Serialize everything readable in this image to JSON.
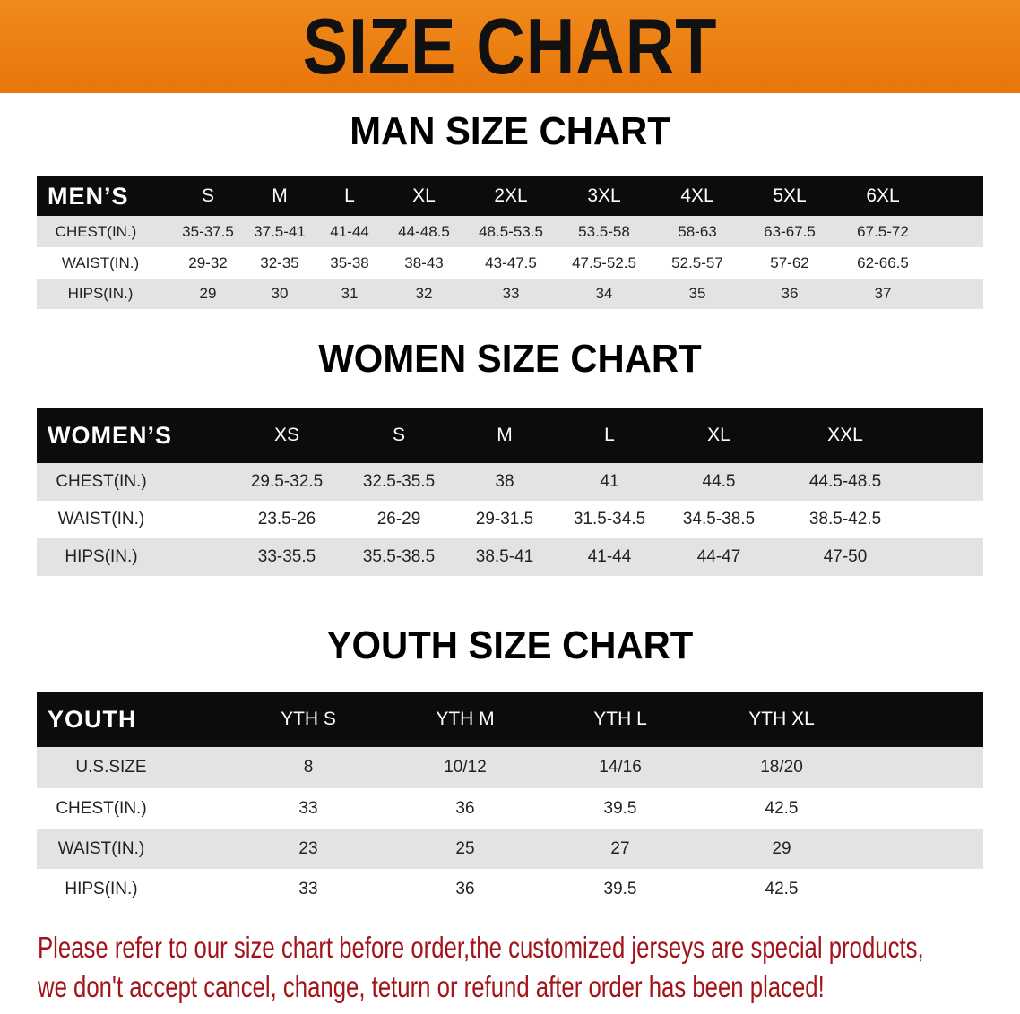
{
  "banner_title": "SIZE CHART",
  "men": {
    "title": "MAN SIZE CHART",
    "header": "MEN’S",
    "sizes": [
      "S",
      "M",
      "L",
      "XL",
      "2XL",
      "3XL",
      "4XL",
      "5XL",
      "6XL"
    ],
    "rows": [
      {
        "label": "CHEST(IN.)",
        "values": [
          "35-37.5",
          "37.5-41",
          "41-44",
          "44-48.5",
          "48.5-53.5",
          "53.5-58",
          "58-63",
          "63-67.5",
          "67.5-72"
        ]
      },
      {
        "label": "WAIST(IN.)",
        "values": [
          "29-32",
          "32-35",
          "35-38",
          "38-43",
          "43-47.5",
          "47.5-52.5",
          "52.5-57",
          "57-62",
          "62-66.5"
        ]
      },
      {
        "label": "HIPS(IN.)",
        "values": [
          "29",
          "30",
          "31",
          "32",
          "33",
          "34",
          "35",
          "36",
          "37"
        ]
      }
    ]
  },
  "women": {
    "title": "WOMEN SIZE CHART",
    "header": "WOMEN’S",
    "sizes": [
      "XS",
      "S",
      "M",
      "L",
      "XL",
      "XXL"
    ],
    "rows": [
      {
        "label": "CHEST(IN.)",
        "values": [
          "29.5-32.5",
          "32.5-35.5",
          "38",
          "41",
          "44.5",
          "44.5-48.5"
        ]
      },
      {
        "label": "WAIST(IN.)",
        "values": [
          "23.5-26",
          "26-29",
          "29-31.5",
          "31.5-34.5",
          "34.5-38.5",
          "38.5-42.5"
        ]
      },
      {
        "label": "HIPS(IN.)",
        "values": [
          "33-35.5",
          "35.5-38.5",
          "38.5-41",
          "41-44",
          "44-47",
          "47-50"
        ]
      }
    ]
  },
  "youth": {
    "title": "YOUTH SIZE CHART",
    "header": "YOUTH",
    "sizes": [
      "YTH S",
      "YTH M",
      "YTH L",
      "YTH XL"
    ],
    "rows": [
      {
        "label": "U.S.SIZE",
        "values": [
          "8",
          "10/12",
          "14/16",
          "18/20"
        ]
      },
      {
        "label": "CHEST(IN.)",
        "values": [
          "33",
          "36",
          "39.5",
          "42.5"
        ]
      },
      {
        "label": "WAIST(IN.)",
        "values": [
          "23",
          "25",
          "27",
          "29"
        ]
      },
      {
        "label": "HIPS(IN.)",
        "values": [
          "33",
          "36",
          "39.5",
          "42.5"
        ]
      }
    ]
  },
  "note": {
    "line1": "Please refer to our size chart before order,the customized jerseys are special products,",
    "line2": "we don't accept cancel, change, teturn or refund after order has been placed!"
  },
  "colors": {
    "banner": "#ee800f",
    "header_bg": "#0c0c0c",
    "row_gray": "#e3e3e3",
    "note": "#a3141a"
  }
}
